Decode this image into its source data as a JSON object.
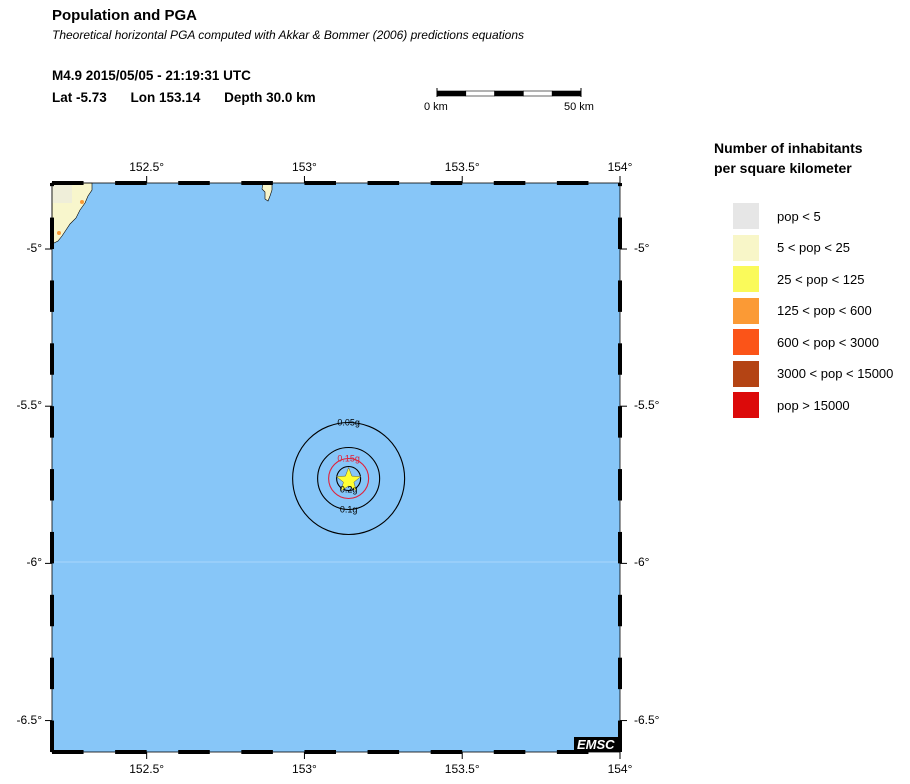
{
  "header": {
    "title": "Population and PGA",
    "subtitle": "Theoretical horizontal PGA computed with Akkar & Bommer (2006) predictions equations",
    "event_line": "M4.9  2015/05/05 - 21:19:31 UTC",
    "lat": "Lat -5.73",
    "lon": "Lon 153.14",
    "depth": "Depth  30.0 km"
  },
  "scale_bar": {
    "start_label": "0 km",
    "end_label": "50 km"
  },
  "map": {
    "lon_range": [
      152.2,
      154.0
    ],
    "lat_range": [
      -6.6,
      -4.79
    ],
    "epicenter": {
      "lat": -5.73,
      "lon": 153.14
    },
    "x_ticks": [
      "152.5°",
      "153°",
      "153.5°",
      "154°"
    ],
    "y_ticks": [
      "-5°",
      "-5.5°",
      "-6°",
      "-6.5°"
    ],
    "sea_color": "#87c6f8",
    "land_color": "#f8f6cc",
    "contours": [
      {
        "label": "0.05g",
        "color": "#000000"
      },
      {
        "label": "0.1g",
        "color": "#000000"
      },
      {
        "label": "0.15g",
        "color": "#e0203a"
      },
      {
        "label": "0.2g",
        "color": "#000000"
      }
    ],
    "epicenter_icon": "star-icon",
    "epicenter_color": "#ffff33",
    "logo": "EMSC"
  },
  "legend": {
    "title_line1": "Number of inhabitants",
    "title_line2": "per square kilometer",
    "items": [
      {
        "label": "pop < 5",
        "color": "#e6e6e6"
      },
      {
        "label": "5 < pop < 25",
        "color": "#f8f6c8"
      },
      {
        "label": "25 < pop < 125",
        "color": "#fafa5a"
      },
      {
        "label": "125 < pop < 600",
        "color": "#fb9a35"
      },
      {
        "label": "600 < pop < 3000",
        "color": "#fb5418"
      },
      {
        "label": "3000 < pop < 15000",
        "color": "#b44414"
      },
      {
        "label": "pop > 15000",
        "color": "#dc0a0a"
      }
    ]
  }
}
